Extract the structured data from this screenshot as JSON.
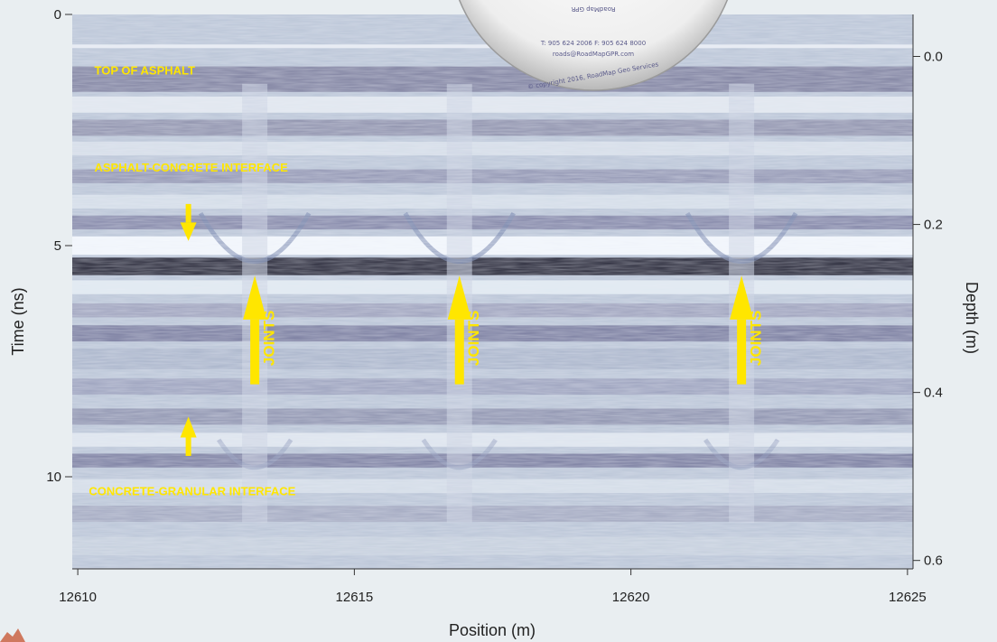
{
  "chart_data": {
    "type": "heatmap",
    "title": "",
    "xlabel": "Position (m)",
    "ylabel": "Time (ns)",
    "y2label": "Depth (m)",
    "xlim": [
      12609.9,
      12625.1
    ],
    "ylim": [
      0,
      12
    ],
    "y2lim": [
      -0.05,
      0.61
    ],
    "x_ticks": [
      12610,
      12615,
      12620,
      12625
    ],
    "y_ticks": [
      0,
      5,
      10
    ],
    "y2_ticks": [
      0.0,
      0.2,
      0.4,
      0.6
    ],
    "x_tick_labels": [
      "12610",
      "12615",
      "12620",
      "12625"
    ],
    "y_tick_labels": [
      "0",
      "5",
      "10"
    ],
    "y2_tick_labels": [
      "0.0",
      "0.2",
      "0.4",
      "0.6"
    ],
    "reflectors": [
      {
        "name": "asphalt-concrete",
        "time_ns": 5.5
      },
      {
        "name": "concrete-granular",
        "time_ns": 9.7
      }
    ],
    "joints_x": [
      12613.2,
      12616.9,
      12622.0
    ],
    "annotations": [
      {
        "text": "TOP OF ASPHALT",
        "x": 12610.3,
        "t": 1.2
      },
      {
        "text": "ASPHALT-CONCRETE  INTERFACE",
        "x": 12610.3,
        "t": 3.3
      },
      {
        "text": "CONCRETE-GRANULAR INTERFACE",
        "x": 12610.2,
        "t": 10.3
      },
      {
        "text": "JOINTS",
        "x": 12613.55,
        "t": 7.0,
        "arrow_x": 12613.2
      },
      {
        "text": "JOINTS",
        "x": 12617.25,
        "t": 7.0,
        "arrow_x": 12616.9
      },
      {
        "text": "JOINTS",
        "x": 12622.35,
        "t": 7.0,
        "arrow_x": 12622.0
      }
    ],
    "grid": false,
    "colors": {
      "annotation": "#ffe600",
      "radar_base": "#b7c3d6",
      "background": "#e9eef1"
    }
  },
  "logo": {
    "text_mirrored": "RoadMap GPR",
    "phone": "T: 905 624 2006  F: 905 624 8000",
    "email": "roads@RoadMapGPR.com",
    "copyright": "© copyright 2016, RoadMap Geo Services"
  }
}
